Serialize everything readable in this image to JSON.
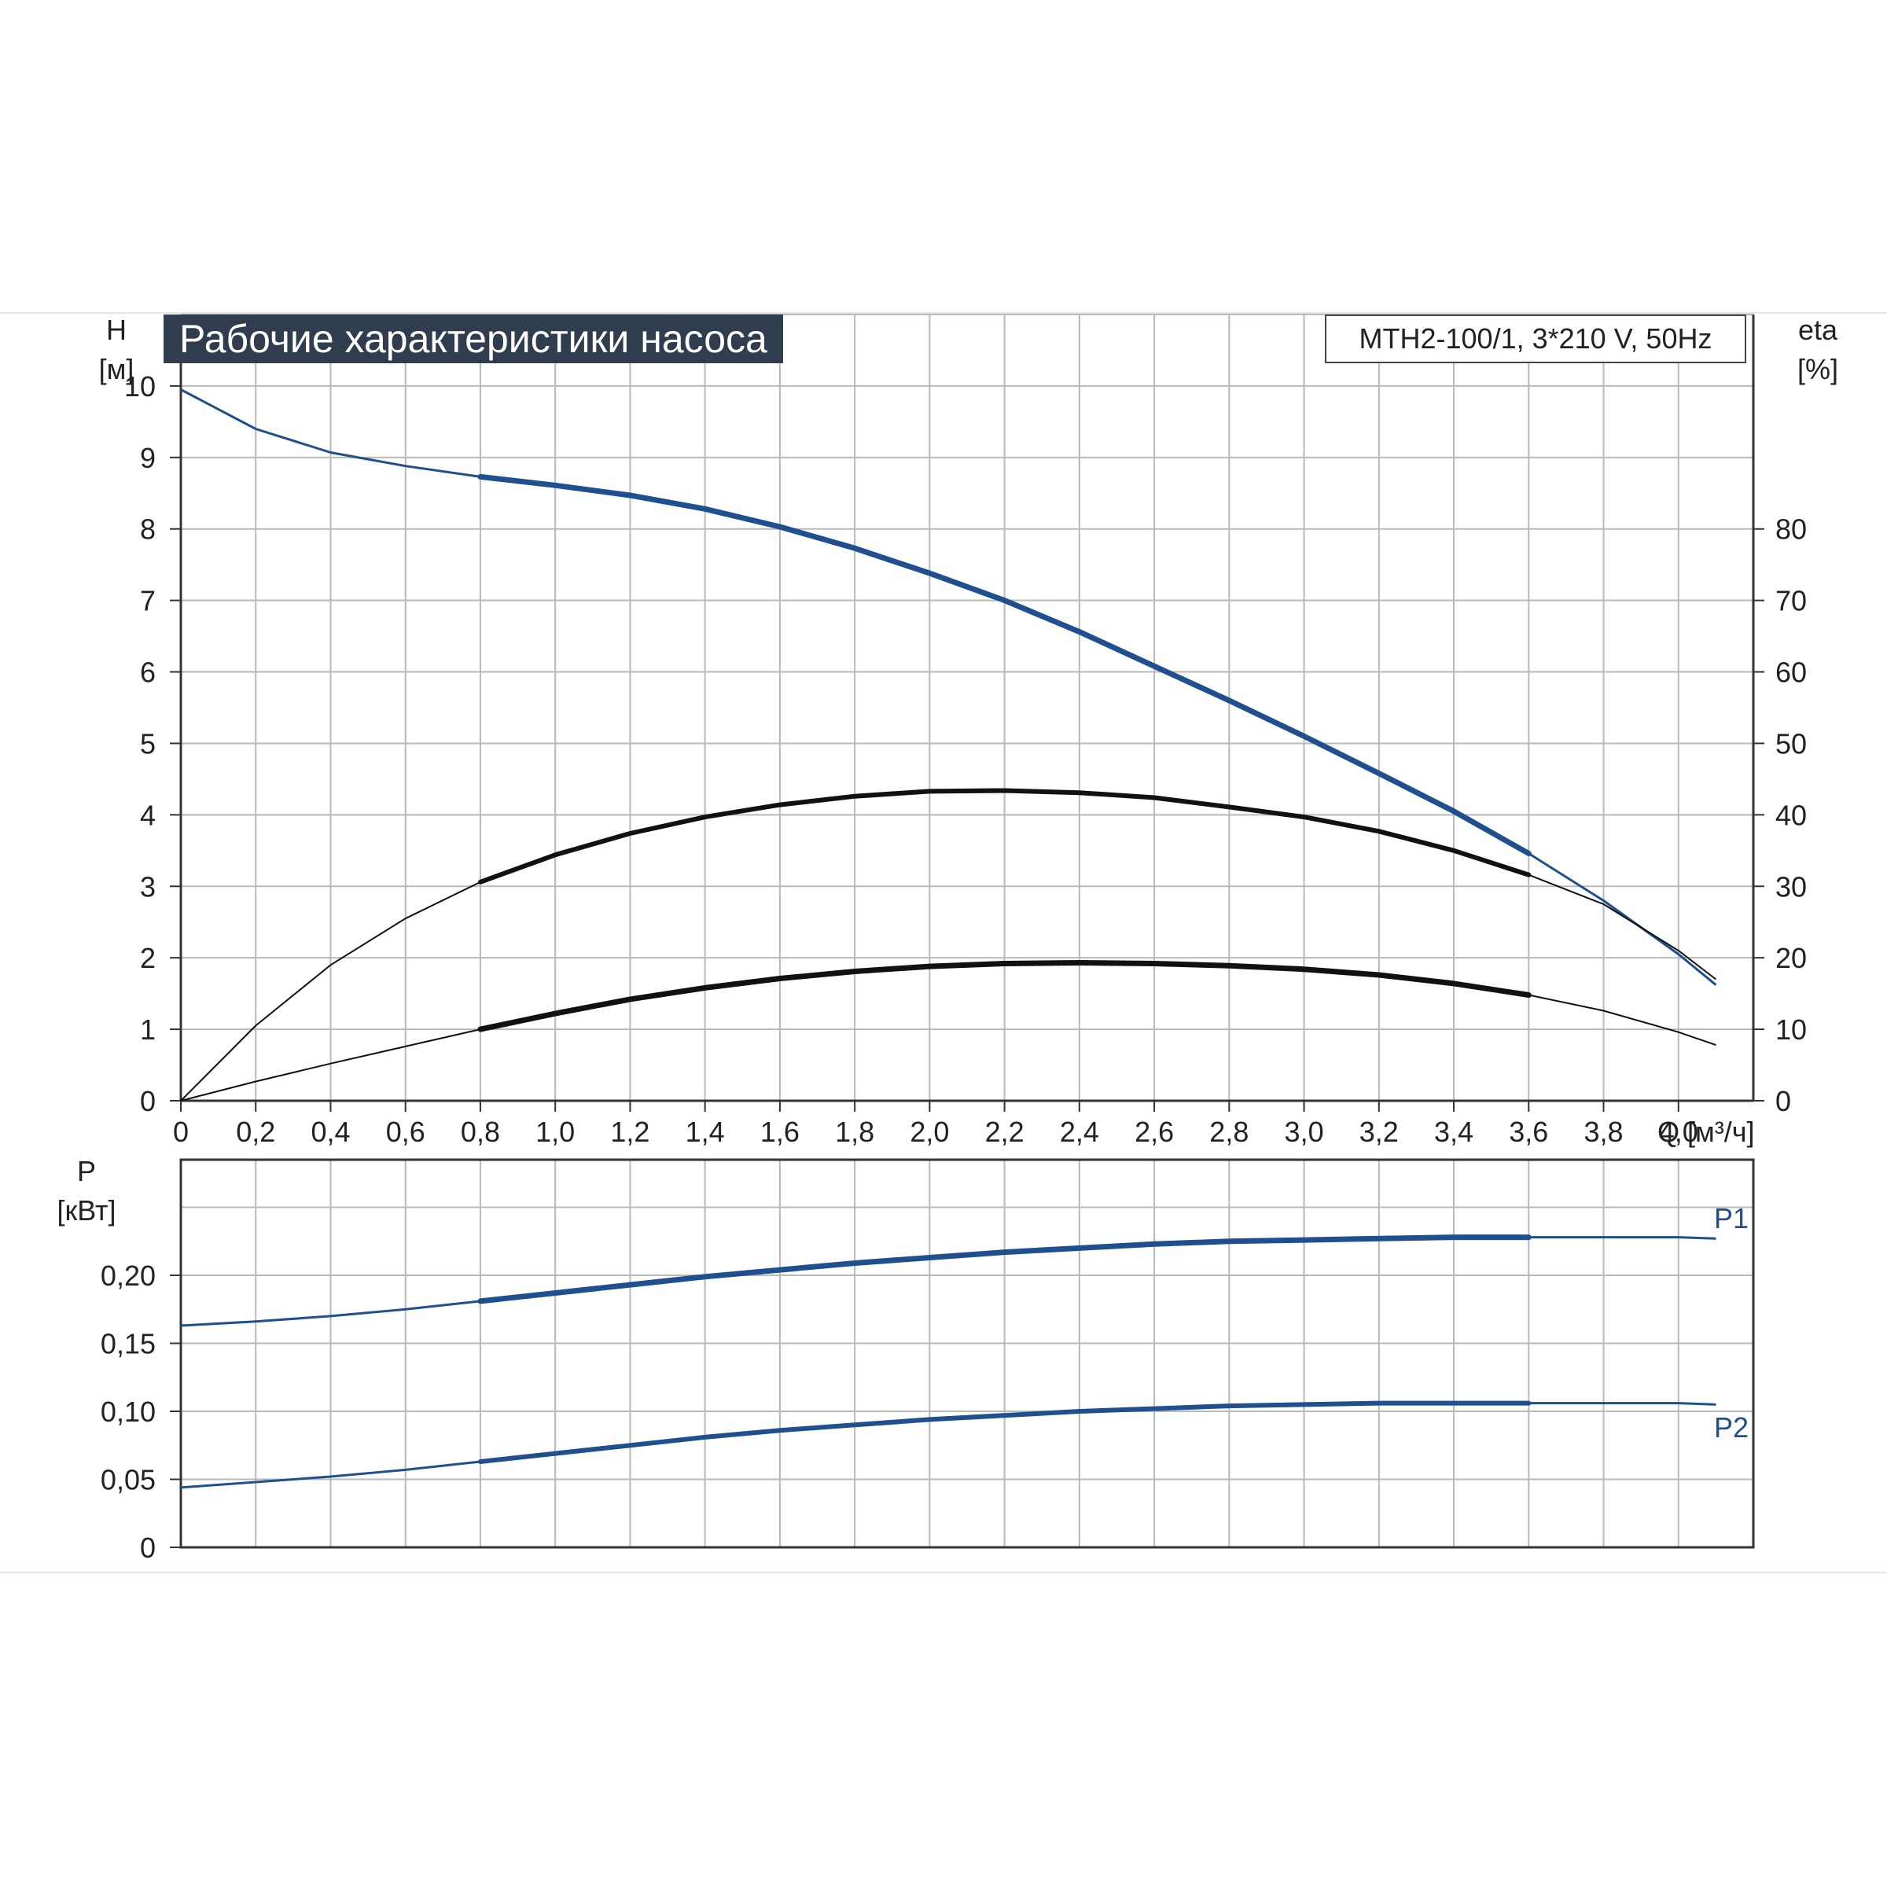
{
  "title": "Рабочие характеристики насоса",
  "model": "MTH2-100/1, 3*210 V, 50Hz",
  "colors": {
    "blue": "#1f4f8f",
    "black": "#111111",
    "grid": "#b9b9b9",
    "title_bg": "#2f3d4f"
  },
  "chart_data": [
    {
      "type": "line",
      "name": "head-and-efficiency",
      "xlabel": "Q [м³/ч]",
      "ylabel_top": "H",
      "ylabel_unit": "[м]",
      "y2label_top": "eta",
      "y2label_unit": "[%]",
      "xlim": [
        0,
        4.2
      ],
      "ylim": [
        0,
        11
      ],
      "y2lim": [
        0,
        110
      ],
      "x_ticks": [
        "0",
        "0,2",
        "0,4",
        "0,6",
        "0,8",
        "1,0",
        "1,2",
        "1,4",
        "1,6",
        "1,8",
        "2,0",
        "2,2",
        "2,4",
        "2,6",
        "2,8",
        "3,0",
        "3,2",
        "3,4",
        "3,6",
        "3,8",
        "4,0"
      ],
      "y_ticks": [
        "0",
        "1",
        "2",
        "3",
        "4",
        "5",
        "6",
        "7",
        "8",
        "9",
        "10"
      ],
      "y2_ticks": [
        "0",
        "10",
        "20",
        "30",
        "40",
        "50",
        "60",
        "70",
        "80"
      ],
      "grid": true,
      "series": [
        {
          "axis": "left",
          "color": "blue",
          "bold_range": [
            0.7,
            3.6
          ],
          "x": [
            0,
            0.2,
            0.4,
            0.6,
            0.8,
            1.0,
            1.2,
            1.4,
            1.6,
            1.8,
            2.0,
            2.2,
            2.4,
            2.6,
            2.8,
            3.0,
            3.2,
            3.4,
            3.6,
            3.8,
            4.0,
            4.1
          ],
          "y": [
            9.95,
            9.4,
            9.07,
            8.88,
            8.73,
            8.61,
            8.47,
            8.28,
            8.03,
            7.73,
            7.38,
            7.0,
            6.56,
            6.08,
            5.6,
            5.1,
            4.58,
            4.05,
            3.46,
            2.8,
            2.05,
            1.62
          ]
        },
        {
          "axis": "right",
          "color": "black",
          "bold_range": [
            0.7,
            3.6
          ],
          "x": [
            0,
            0.2,
            0.4,
            0.6,
            0.8,
            1.0,
            1.2,
            1.4,
            1.6,
            1.8,
            2.0,
            2.2,
            2.4,
            2.6,
            2.8,
            3.0,
            3.2,
            3.4,
            3.6,
            3.8,
            4.0,
            4.1
          ],
          "y": [
            0,
            10.5,
            19.0,
            25.5,
            30.6,
            34.4,
            37.4,
            39.7,
            41.4,
            42.6,
            43.3,
            43.4,
            43.1,
            42.4,
            41.1,
            39.7,
            37.7,
            35.0,
            31.6,
            27.5,
            21.0,
            17.0
          ]
        },
        {
          "axis": "right",
          "color": "black",
          "bold_range": [
            0.7,
            3.6
          ],
          "x": [
            0,
            0.2,
            0.4,
            0.6,
            0.8,
            1.0,
            1.2,
            1.4,
            1.6,
            1.8,
            2.0,
            2.2,
            2.4,
            2.6,
            2.8,
            3.0,
            3.2,
            3.4,
            3.6,
            3.8,
            4.0,
            4.1
          ],
          "y": [
            0,
            2.7,
            5.2,
            7.6,
            10.0,
            12.2,
            14.2,
            15.8,
            17.1,
            18.1,
            18.8,
            19.2,
            19.3,
            19.2,
            18.9,
            18.4,
            17.6,
            16.4,
            14.8,
            12.6,
            9.6,
            7.8
          ]
        }
      ]
    },
    {
      "type": "line",
      "name": "power",
      "xlabel": "",
      "ylabel_top": "P",
      "ylabel_unit": "[кВт]",
      "xlim": [
        0,
        4.2
      ],
      "ylim": [
        0,
        0.285
      ],
      "y_ticks": [
        "0",
        "0,05",
        "0,10",
        "0,15",
        "0,20"
      ],
      "grid": true,
      "series": [
        {
          "name": "P1",
          "color": "blue",
          "bold_range": [
            0.7,
            3.6
          ],
          "x": [
            0,
            0.2,
            0.4,
            0.6,
            0.8,
            1.0,
            1.2,
            1.4,
            1.6,
            1.8,
            2.0,
            2.2,
            2.4,
            2.6,
            2.8,
            3.0,
            3.2,
            3.4,
            3.6,
            3.8,
            4.0,
            4.1
          ],
          "y": [
            0.163,
            0.166,
            0.17,
            0.175,
            0.181,
            0.187,
            0.193,
            0.199,
            0.204,
            0.209,
            0.213,
            0.217,
            0.22,
            0.223,
            0.225,
            0.226,
            0.227,
            0.228,
            0.228,
            0.228,
            0.228,
            0.227
          ]
        },
        {
          "name": "P2",
          "color": "blue",
          "bold_range": [
            0.7,
            3.6
          ],
          "x": [
            0,
            0.2,
            0.4,
            0.6,
            0.8,
            1.0,
            1.2,
            1.4,
            1.6,
            1.8,
            2.0,
            2.2,
            2.4,
            2.6,
            2.8,
            3.0,
            3.2,
            3.4,
            3.6,
            3.8,
            4.0,
            4.1
          ],
          "y": [
            0.044,
            0.048,
            0.052,
            0.057,
            0.063,
            0.069,
            0.075,
            0.081,
            0.086,
            0.09,
            0.094,
            0.097,
            0.1,
            0.102,
            0.104,
            0.105,
            0.106,
            0.106,
            0.106,
            0.106,
            0.106,
            0.105
          ]
        }
      ]
    }
  ]
}
